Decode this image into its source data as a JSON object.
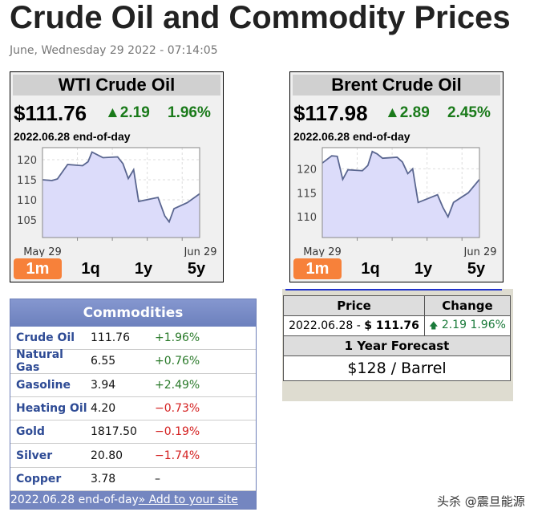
{
  "page": {
    "title": "Crude Oil and Commodity Prices",
    "date": "June, Wednesday 29 2022 - 07:14:05"
  },
  "widgets": [
    {
      "name": "WTI Crude Oil",
      "price": "$111.76",
      "change": "▲2.19",
      "percent": "1.96%",
      "asof": "2022.06.28 end-of-day",
      "chart_data": {
        "type": "area",
        "x_labels": [
          "May 29",
          "Jun 29"
        ],
        "yticks": [
          105,
          110,
          115,
          120
        ],
        "ylim": [
          100.6,
          123
        ],
        "color": "#5a6690",
        "fill": "#dcdcfa",
        "grid": true,
        "values": [
          115,
          114.8,
          115.2,
          118.8,
          118.5,
          119.5,
          121.9,
          120.5,
          120.7,
          119,
          115.3,
          117.5,
          109.6,
          110.6,
          106,
          104.5,
          107.8,
          109.3,
          111.5
        ],
        "xpos": [
          0,
          0.06,
          0.095,
          0.16,
          0.255,
          0.29,
          0.315,
          0.385,
          0.478,
          0.512,
          0.546,
          0.58,
          0.612,
          0.735,
          0.778,
          0.806,
          0.837,
          0.922,
          1
        ]
      },
      "tabs": [
        "1m",
        "1q",
        "1y",
        "5y"
      ],
      "active_tab": "1m"
    },
    {
      "name": "Brent Crude Oil",
      "price": "$117.98",
      "change": "▲2.89",
      "percent": "2.45%",
      "asof": "2022.06.28 end-of-day",
      "chart_data": {
        "type": "area",
        "x_labels": [
          "May 29",
          "Jun 29"
        ],
        "yticks": [
          110,
          115,
          120
        ],
        "ylim": [
          105.7,
          124.4
        ],
        "color": "#5a6690",
        "fill": "#dcdcfa",
        "grid": true,
        "values": [
          121.2,
          122.7,
          122.6,
          117.8,
          119.8,
          119.6,
          120.7,
          123.6,
          123.1,
          122.2,
          122.4,
          121.4,
          119,
          120,
          113,
          114.6,
          112,
          110,
          113,
          115,
          117.8
        ],
        "xpos": [
          0,
          0.06,
          0.095,
          0.13,
          0.163,
          0.255,
          0.29,
          0.318,
          0.349,
          0.383,
          0.476,
          0.51,
          0.544,
          0.575,
          0.61,
          0.733,
          0.767,
          0.8,
          0.835,
          0.929,
          1
        ]
      },
      "tabs": [
        "1m",
        "1q",
        "1y",
        "5y"
      ],
      "active_tab": "1m"
    }
  ],
  "commodities": {
    "title": "Commodities",
    "rows": [
      {
        "name": "Crude Oil",
        "value": "111.76",
        "change": "+1.96%",
        "dir": "up"
      },
      {
        "name": "Natural Gas",
        "value": "6.55",
        "change": "+0.76%",
        "dir": "up"
      },
      {
        "name": "Gasoline",
        "value": "3.94",
        "change": "+2.49%",
        "dir": "up"
      },
      {
        "name": "Heating Oil",
        "value": "4.20",
        "change": "−0.73%",
        "dir": "down"
      },
      {
        "name": "Gold",
        "value": "1817.50",
        "change": "−0.19%",
        "dir": "down"
      },
      {
        "name": "Silver",
        "value": "20.80",
        "change": "−1.74%",
        "dir": "down"
      },
      {
        "name": "Copper",
        "value": "3.78",
        "change": "–",
        "dir": "none"
      }
    ],
    "footer": "2022.06.28 end-of-day",
    "footer_link": "» Add to your site"
  },
  "forecast": {
    "price_header": "Price",
    "change_header": "Change",
    "date": "2022.06.28 - ",
    "price": "$ 111.76",
    "arrow": "🡅",
    "change": " 2.19 1.96%",
    "forecast_header": "1 Year Forecast",
    "forecast_value": "$128 / Barrel"
  },
  "watermark": "头杀 @震旦能源"
}
